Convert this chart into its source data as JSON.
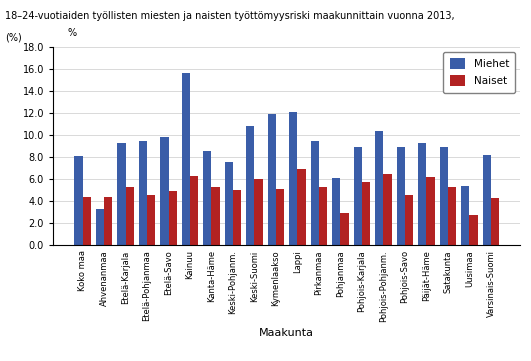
{
  "title_line1": "18–24-vuotiaiden työllisten miesten ja naisten työttömyysriski maakunnittain vuonna 2013,",
  "title_line2": "(%)",
  "xlabel": "Maakunta",
  "ylabel": "%",
  "categories": [
    "Koko maa",
    "Ahvenanmaa",
    "Etelä-Karjala",
    "Etelä-Pohjanmaa",
    "Etelä-Savo",
    "Kainuu",
    "Kanta-Häme",
    "Keski-Pohjanm.",
    "Keski-Suomi",
    "Kymenlaakso",
    "Lappi",
    "Pirkanmaa",
    "Pohjanmaa",
    "Pohjois-Karjala",
    "Pohjois-Pohjanm.",
    "Pohjois-Savo",
    "Päijät-Häme",
    "Satakunta",
    "Uusimaa",
    "Varsinais-Suomi"
  ],
  "miehet": [
    8.1,
    3.3,
    9.3,
    9.5,
    9.8,
    15.6,
    8.6,
    7.6,
    10.8,
    11.9,
    12.1,
    9.5,
    6.1,
    8.9,
    10.4,
    8.9,
    9.3,
    8.9,
    5.4,
    8.2
  ],
  "naiset": [
    4.4,
    4.4,
    5.3,
    4.6,
    4.9,
    6.3,
    5.3,
    5.0,
    6.0,
    5.1,
    6.9,
    5.3,
    2.9,
    5.8,
    6.5,
    4.6,
    6.2,
    5.3,
    2.8,
    4.3
  ],
  "color_miehet": "#3a5da8",
  "color_naiset": "#b22222",
  "ylim": [
    0,
    18
  ],
  "yticks": [
    0.0,
    2.0,
    4.0,
    6.0,
    8.0,
    10.0,
    12.0,
    14.0,
    16.0,
    18.0
  ],
  "legend_labels": [
    "Miehet",
    "Naiset"
  ],
  "bar_width": 0.38
}
